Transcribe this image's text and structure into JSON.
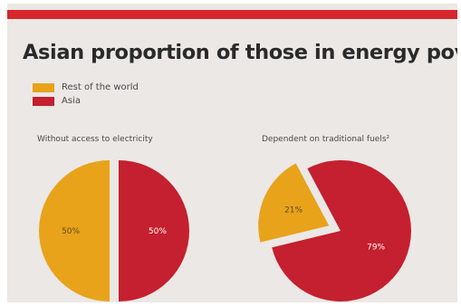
{
  "title": "Asian proportion of those in energy poverty",
  "legend": [
    {
      "label": "Rest of the world",
      "color": "#e8a31b"
    },
    {
      "label": "Asia",
      "color": "#c4202f"
    }
  ],
  "chart_data": [
    {
      "type": "pie",
      "title": "Without access to electricity",
      "slices": [
        {
          "name": "Rest of the world",
          "value": 50,
          "label": "50%",
          "color": "#e8a31b"
        },
        {
          "name": "Asia",
          "value": 50,
          "label": "50%",
          "color": "#c4202f"
        }
      ]
    },
    {
      "type": "pie",
      "title": "Dependent on traditional fuels²",
      "slices": [
        {
          "name": "Rest of the world",
          "value": 21,
          "label": "21%",
          "color": "#e8a31b",
          "exploded": true
        },
        {
          "name": "Asia",
          "value": 79,
          "label": "79%",
          "color": "#c4202f"
        }
      ]
    }
  ]
}
